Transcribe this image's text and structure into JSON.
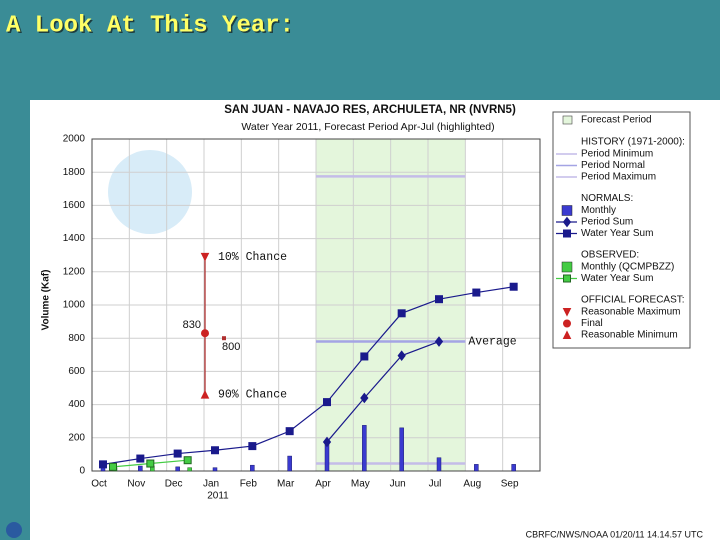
{
  "slide_title": "A Look At This Year:",
  "chart_data": {
    "type": "combo",
    "title": "SAN JUAN - NAVAJO RES, ARCHULETA, NR (NVRN5)",
    "subtitle": "Water Year 2011, Forecast Period Apr-Jul (highlighted)",
    "y_label": "Volume (Kaf)",
    "x_sublabel": "2011",
    "footer": "CBRFC/NWS/NOAA 01/20/11 14.14.57 UTC",
    "categories": [
      "Oct",
      "Nov",
      "Dec",
      "Jan",
      "Feb",
      "Mar",
      "Apr",
      "May",
      "Jun",
      "Jul",
      "Aug",
      "Sep"
    ],
    "ylim": [
      0,
      2000
    ],
    "yticks": [
      0,
      200,
      400,
      600,
      800,
      1000,
      1200,
      1400,
      1600,
      1800,
      2000
    ],
    "grid": true,
    "highlight_name": "Forecast Period",
    "highlight": [
      "Apr",
      "Jul"
    ],
    "highlight_color": "#e4f6dc",
    "groups": [
      {
        "heading": "HISTORY (1971-2000):",
        "series": [
          {
            "name": "Period Minimum",
            "kind": "hline",
            "color": "#c4bce8",
            "value": 45
          },
          {
            "name": "Period Normal",
            "kind": "hline",
            "color": "#a4a4e4",
            "value": 780
          },
          {
            "name": "Period Maximum",
            "kind": "hline",
            "color": "#c4bce8",
            "value": 1775
          }
        ]
      },
      {
        "heading": "NORMALS:",
        "series": [
          {
            "name": "Monthly",
            "kind": "bar",
            "color": "#3a3ad0",
            "values": [
              40,
              30,
              25,
              20,
              35,
              90,
              175,
              275,
              260,
              80,
              40,
              40
            ]
          },
          {
            "name": "Period Sum",
            "kind": "line",
            "marker": "diamond",
            "color": "#1a1a8c",
            "values": [
              null,
              null,
              null,
              null,
              null,
              null,
              175,
              440,
              695,
              780,
              null,
              null
            ]
          },
          {
            "name": "Water Year Sum",
            "kind": "line",
            "marker": "square",
            "color": "#1a1a8c",
            "values": [
              40,
              75,
              105,
              125,
              150,
              240,
              415,
              690,
              950,
              1035,
              1075,
              1110
            ]
          }
        ]
      },
      {
        "heading": "OBSERVED:",
        "series": [
          {
            "name": "Monthly (QCMPBZZ)",
            "kind": "bar",
            "color": "#44cc44",
            "values": [
              20,
              30,
              20,
              null,
              null,
              null,
              null,
              null,
              null,
              null,
              null,
              null
            ]
          },
          {
            "name": "Water Year Sum",
            "kind": "line",
            "marker": "square",
            "color": "#44cc44",
            "values": [
              25,
              45,
              65,
              null,
              null,
              null,
              null,
              null,
              null,
              null,
              null,
              null
            ]
          }
        ]
      },
      {
        "heading": "OFFICIAL FORECAST:",
        "series": [
          {
            "name": "Reasonable Maximum",
            "kind": "point",
            "marker": "tri-down",
            "color": "#cc2222",
            "values": [
              null,
              null,
              null,
              1290,
              null,
              null,
              null,
              null,
              null,
              null,
              null,
              null
            ]
          },
          {
            "name": "Final",
            "kind": "point",
            "marker": "circle",
            "color": "#cc2222",
            "values": [
              null,
              null,
              null,
              830,
              null,
              null,
              null,
              null,
              null,
              null,
              null,
              null
            ],
            "value_labels": [
              null,
              null,
              null,
              "830",
              null,
              null,
              null,
              null,
              null,
              null,
              null,
              null
            ]
          },
          {
            "name": "Reasonable Minimum",
            "kind": "point",
            "marker": "tri-up",
            "color": "#cc2222",
            "values": [
              null,
              null,
              null,
              460,
              null,
              null,
              null,
              null,
              null,
              null,
              null,
              null
            ]
          }
        ]
      }
    ],
    "annotations": [
      {
        "text": "10% Chance"
      },
      {
        "text": "90% Chance"
      },
      {
        "text": "Average"
      },
      {
        "label": "800",
        "value": 800,
        "x": "Jan"
      }
    ]
  }
}
